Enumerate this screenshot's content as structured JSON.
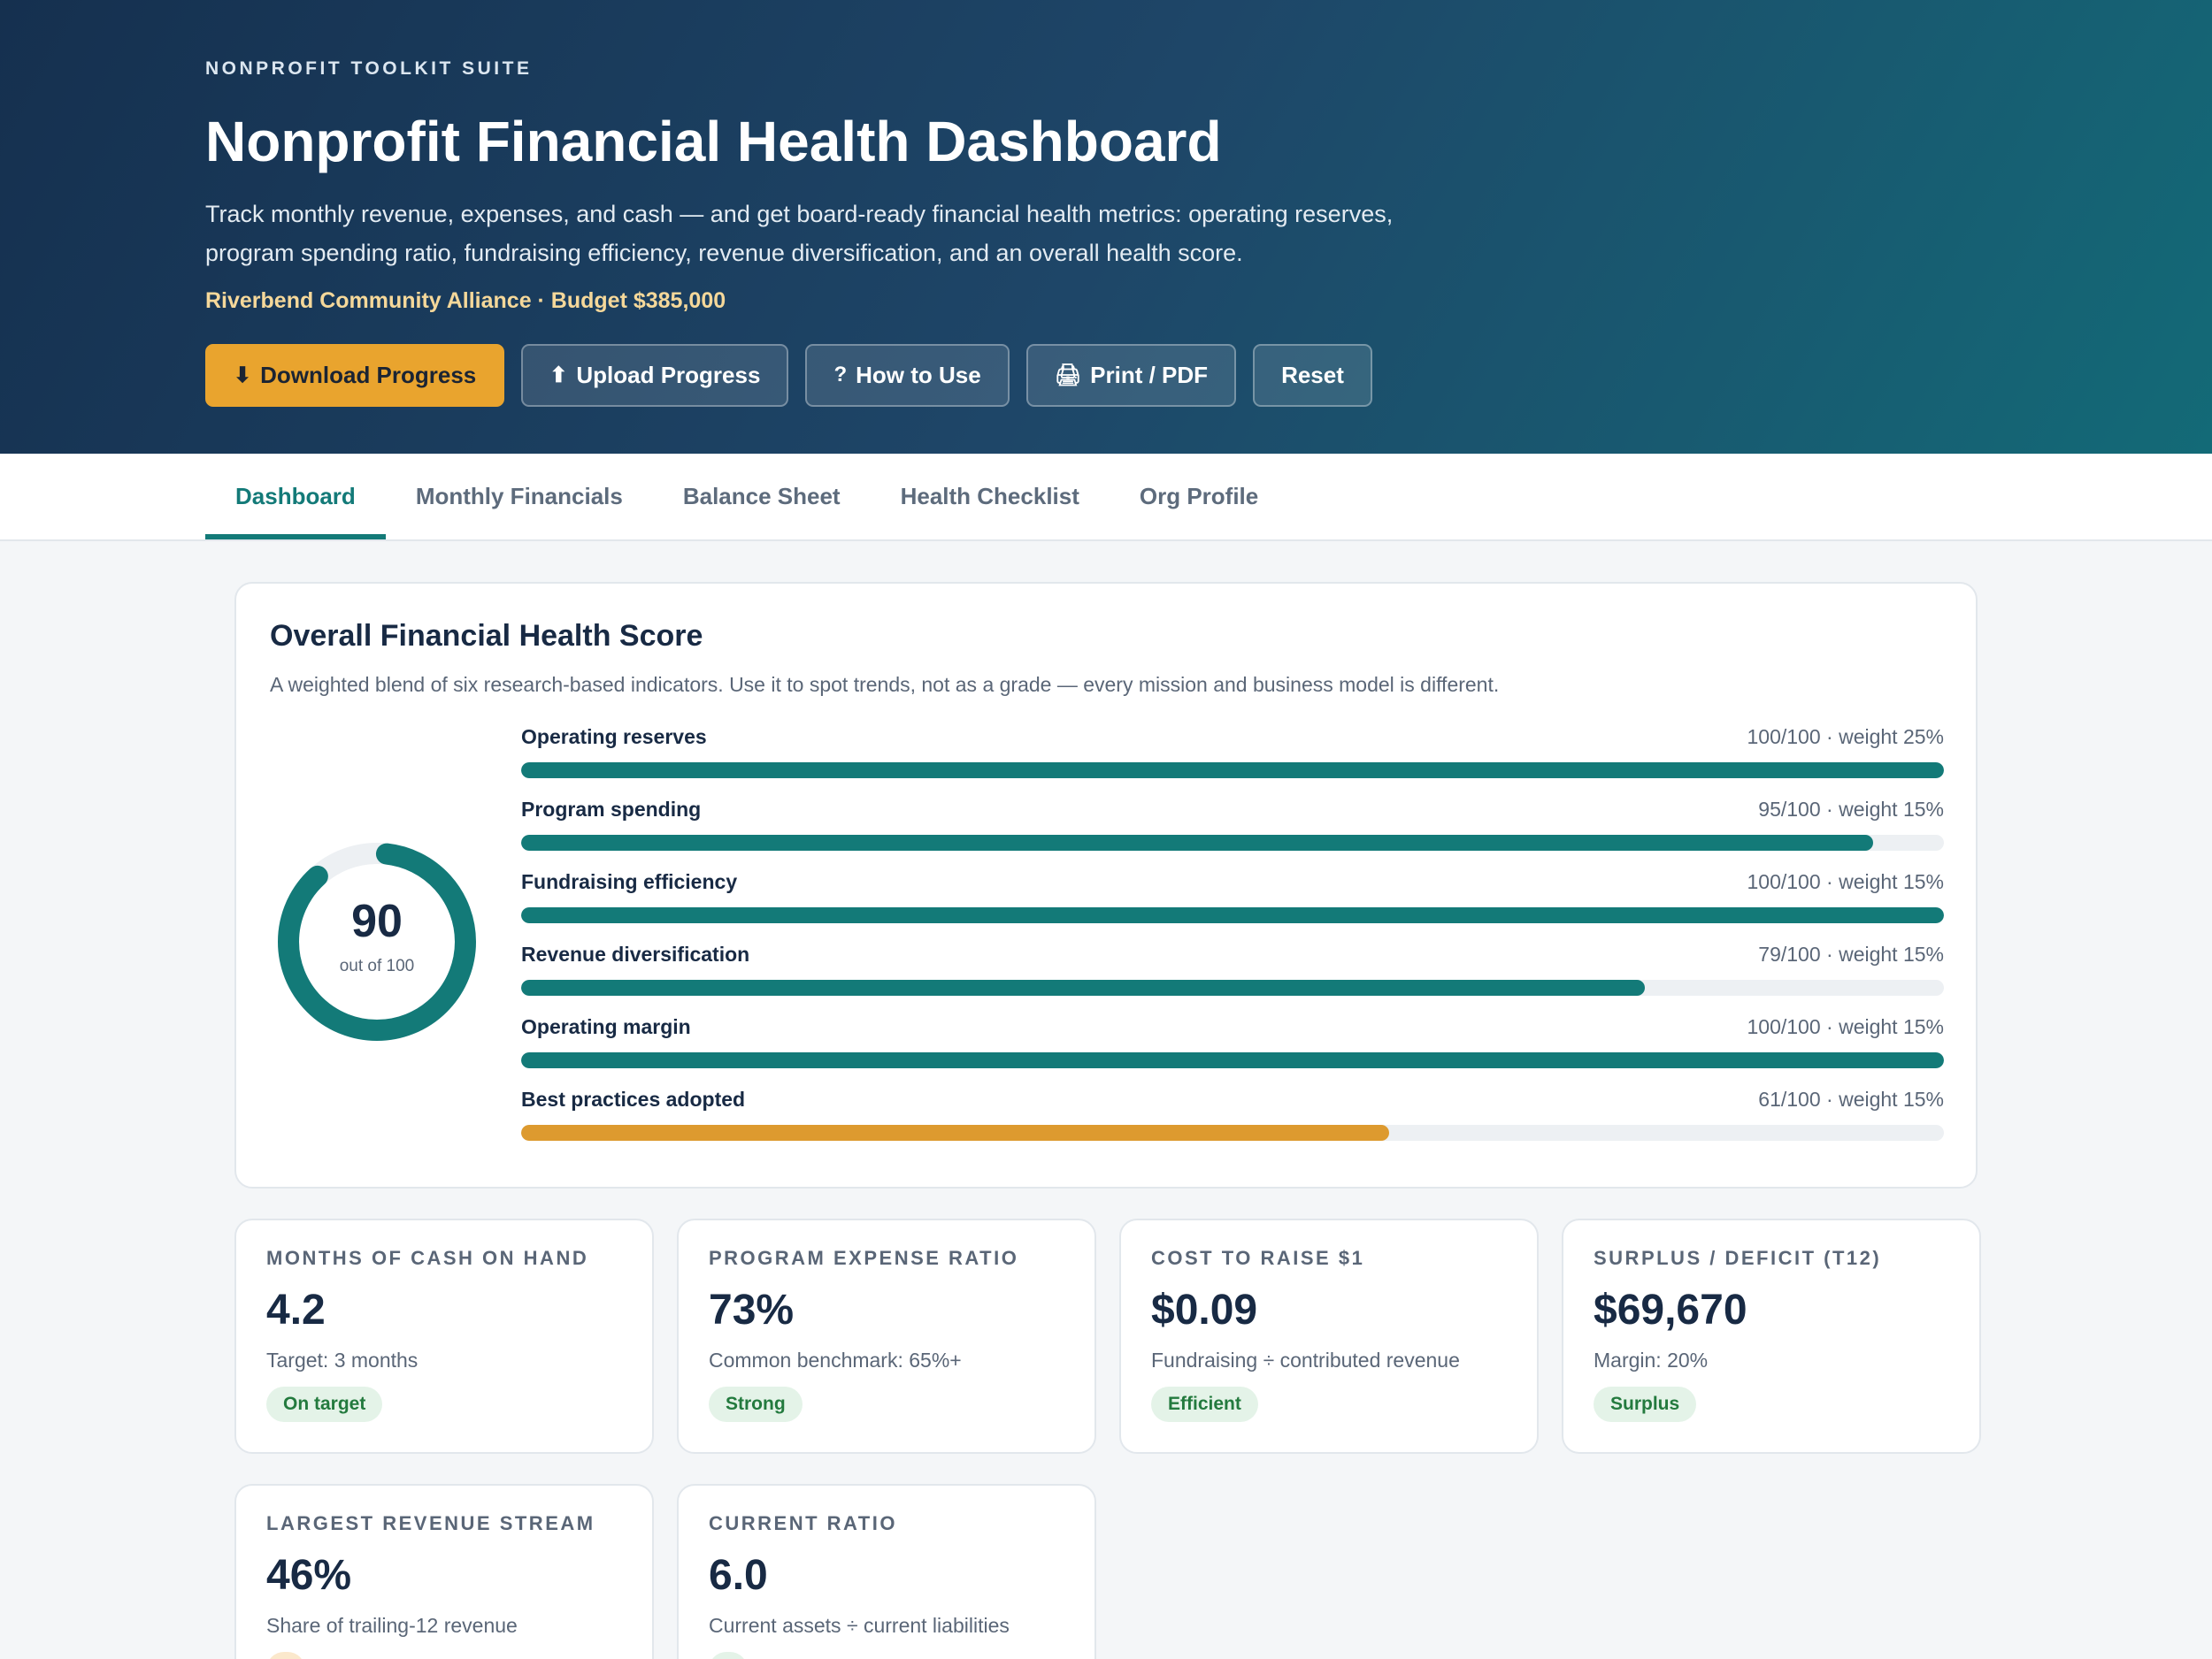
{
  "header": {
    "eyebrow": "NONPROFIT TOOLKIT SUITE",
    "title": "Nonprofit Financial Health Dashboard",
    "description": "Track monthly revenue, expenses, and cash — and get board-ready financial health metrics: operating reserves, program spending ratio, fundraising efficiency, revenue diversification, and an overall health score.",
    "org_line": "Riverbend Community Alliance · Budget $385,000",
    "buttons": [
      {
        "icon": "⬇",
        "label": "Download Progress"
      },
      {
        "icon": "⬆",
        "label": "Upload Progress"
      },
      {
        "icon": "?",
        "label": "How to Use"
      },
      {
        "icon": "🖨",
        "label": "Print / PDF"
      },
      {
        "icon": "",
        "label": "Reset"
      }
    ]
  },
  "tabs": [
    "Dashboard",
    "Monthly Financials",
    "Balance Sheet",
    "Health Checklist",
    "Org Profile"
  ],
  "active_tab": "Dashboard",
  "score_card": {
    "title": "Overall Financial Health Score",
    "subtitle": "A weighted blend of six research-based indicators. Use it to spot trends, not as a grade — every mission and business model is different.",
    "score": "90",
    "score_value": 90,
    "score_caption": "out of 100",
    "indicators": [
      {
        "label": "Operating reserves",
        "meta": "100/100 · weight 25%",
        "value": 100
      },
      {
        "label": "Program spending",
        "meta": "95/100 · weight 15%",
        "value": 95
      },
      {
        "label": "Fundraising efficiency",
        "meta": "100/100 · weight 15%",
        "value": 100
      },
      {
        "label": "Revenue diversification",
        "meta": "79/100 · weight 15%",
        "value": 79
      },
      {
        "label": "Operating margin",
        "meta": "100/100 · weight 15%",
        "value": 100
      },
      {
        "label": "Best practices adopted",
        "meta": "61/100 · weight 15%",
        "value": 61
      }
    ]
  },
  "metrics": [
    {
      "label": "MONTHS OF CASH ON HAND",
      "value": "4.2",
      "note": "Target: 3 months",
      "badge": "On target"
    },
    {
      "label": "PROGRAM EXPENSE RATIO",
      "value": "73%",
      "note": "Common benchmark: 65%+",
      "badge": "Strong"
    },
    {
      "label": "COST TO RAISE $1",
      "value": "$0.09",
      "note": "Fundraising ÷ contributed revenue",
      "badge": "Efficient"
    },
    {
      "label": "SURPLUS / DEFICIT (T12)",
      "value": "$69,670",
      "note": "Margin: 20%",
      "badge": "Surplus"
    },
    {
      "label": "LARGEST REVENUE STREAM",
      "value": "46%",
      "note": "Share of trailing-12 revenue",
      "badge": ""
    },
    {
      "label": "CURRENT RATIO",
      "value": "6.0",
      "note": "Current assets ÷ current liabilities",
      "badge": ""
    }
  ],
  "colors": {
    "accent": "#137a78",
    "warning": "#dd9a2f",
    "primary_button": "#e9a42e",
    "header_start": "#15304f",
    "header_end": "#136a77"
  }
}
